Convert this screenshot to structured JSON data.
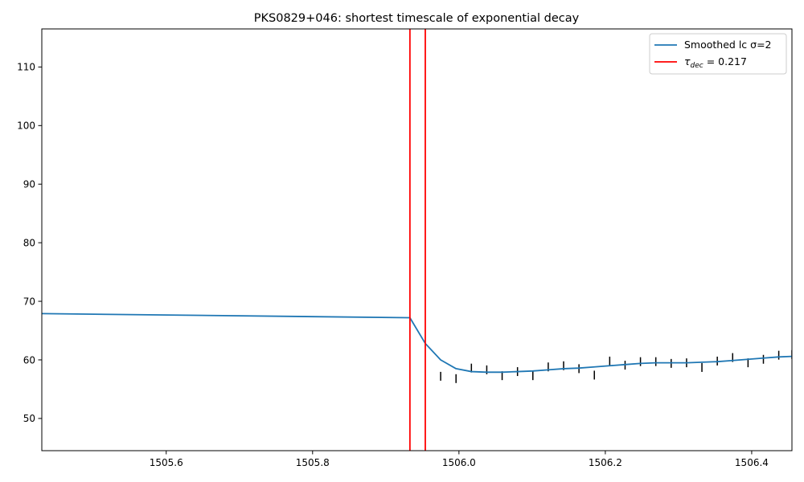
{
  "chart_data": {
    "type": "line",
    "title": "PKS0829+046: shortest timescale of exponential decay",
    "xlabel": "",
    "ylabel": "",
    "xlim": [
      1505.43,
      1506.455
    ],
    "ylim": [
      44.5,
      116.5
    ],
    "x_ticks": [
      1505.6,
      1505.8,
      1506.0,
      1506.2,
      1506.4
    ],
    "x_tick_labels": [
      "1505.6",
      "1505.8",
      "1506.0",
      "1506.2",
      "1506.4"
    ],
    "y_ticks": [
      50,
      60,
      70,
      80,
      90,
      100,
      110
    ],
    "y_tick_labels": [
      "50",
      "60",
      "70",
      "80",
      "90",
      "100",
      "110"
    ],
    "grid": false,
    "legend_position": "top-right",
    "series": [
      {
        "name": "Smoothed lc σ=2",
        "color": "#1f77b4",
        "x": [
          1505.43,
          1505.933,
          1505.954,
          1505.975,
          1505.996,
          1506.017,
          1506.038,
          1506.059,
          1506.08,
          1506.101,
          1506.122,
          1506.143,
          1506.164,
          1506.185,
          1506.206,
          1506.227,
          1506.248,
          1506.269,
          1506.29,
          1506.311,
          1506.332,
          1506.353,
          1506.374,
          1506.395,
          1506.416,
          1506.437,
          1506.455
        ],
        "y": [
          67.9,
          67.2,
          62.8,
          60.0,
          58.5,
          58.0,
          57.9,
          57.9,
          58.0,
          58.1,
          58.3,
          58.5,
          58.6,
          58.8,
          59.0,
          59.2,
          59.4,
          59.5,
          59.5,
          59.5,
          59.6,
          59.7,
          59.9,
          60.1,
          60.3,
          60.5,
          60.6
        ]
      }
    ],
    "measurements": {
      "color": "#000000",
      "marker": "vertical dash",
      "x": [
        1505.975,
        1505.996,
        1506.017,
        1506.038,
        1506.059,
        1506.08,
        1506.101,
        1506.122,
        1506.143,
        1506.164,
        1506.185,
        1506.206,
        1506.227,
        1506.248,
        1506.269,
        1506.29,
        1506.311,
        1506.332,
        1506.353,
        1506.374,
        1506.395,
        1506.416,
        1506.437,
        1506.455
      ],
      "y": [
        57.2,
        56.8,
        58.6,
        58.3,
        57.3,
        58.0,
        57.3,
        58.8,
        59.0,
        58.5,
        57.4,
        59.8,
        59.1,
        59.7,
        59.7,
        59.4,
        59.5,
        58.7,
        59.8,
        60.4,
        59.5,
        60.1,
        60.8,
        60.9
      ]
    },
    "vertical_lines": {
      "name_prefix": "τ",
      "name_subscript": "dec",
      "name_suffix": " = 0.217",
      "color": "#ff0000",
      "x": [
        1505.933,
        1505.954
      ]
    }
  }
}
